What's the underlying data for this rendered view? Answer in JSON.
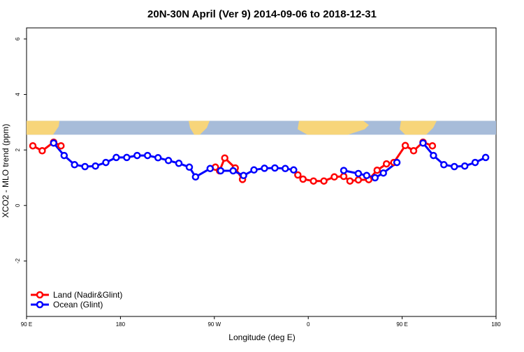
{
  "chart_data": {
    "type": "line",
    "title": "20N-30N April (Ver 9)   2014-09-06 to 2018-12-31",
    "xlabel": "Longitude (deg E)",
    "ylabel": "XCO2 - MLO trend (ppm)",
    "xlim": [
      90,
      540
    ],
    "ylim": [
      -4,
      6.4
    ],
    "x_ticks": [
      {
        "value": 90,
        "label": "90 E"
      },
      {
        "value": 180,
        "label": "180"
      },
      {
        "value": 270,
        "label": "90 W"
      },
      {
        "value": 360,
        "label": "0"
      },
      {
        "value": 450,
        "label": "90 E"
      },
      {
        "value": 540,
        "label": "180"
      }
    ],
    "y_ticks": [
      {
        "value": -2,
        "label": "-2"
      },
      {
        "value": 0,
        "label": "0"
      },
      {
        "value": 2,
        "label": "2"
      },
      {
        "value": 4,
        "label": "4"
      },
      {
        "value": 6,
        "label": "6"
      }
    ],
    "map_band": {
      "y_range": [
        2.55,
        3.05
      ],
      "ocean_color": "#a7bcd9",
      "land_color": "#f7d57a"
    },
    "series": [
      {
        "name": "Land (Nadir&Glint)",
        "color": "#ff0000",
        "segments": [
          [
            [
              96,
              2.15
            ],
            [
              105,
              1.97
            ],
            [
              116,
              2.28
            ],
            [
              123,
              2.15
            ]
          ],
          [
            [
              271,
              1.38
            ],
            [
              275,
              1.25
            ],
            [
              280,
              1.71
            ],
            [
              290,
              1.35
            ],
            [
              297,
              0.94
            ]
          ],
          [
            [
              350,
              1.1
            ],
            [
              355,
              0.95
            ],
            [
              365,
              0.88
            ],
            [
              375,
              0.88
            ],
            [
              385,
              1.03
            ],
            [
              394,
              1.05
            ],
            [
              400,
              0.88
            ],
            [
              408,
              0.92
            ],
            [
              418,
              0.93
            ],
            [
              426,
              1.27
            ],
            [
              435,
              1.5
            ],
            [
              442,
              1.55
            ],
            [
              453,
              2.16
            ],
            [
              461,
              1.97
            ],
            [
              470,
              2.28
            ],
            [
              479,
              2.15
            ]
          ]
        ]
      },
      {
        "name": "Ocean (Glint)",
        "color": "#0000ff",
        "segments": [
          [
            [
              116,
              2.25
            ],
            [
              126,
              1.8
            ],
            [
              136,
              1.47
            ],
            [
              146,
              1.4
            ],
            [
              156,
              1.42
            ],
            [
              166,
              1.55
            ],
            [
              176,
              1.73
            ],
            [
              186,
              1.73
            ],
            [
              196,
              1.8
            ],
            [
              206,
              1.8
            ],
            [
              216,
              1.72
            ],
            [
              226,
              1.62
            ],
            [
              236,
              1.52
            ],
            [
              246,
              1.38
            ],
            [
              252,
              1.03
            ],
            [
              266,
              1.33
            ],
            [
              276,
              1.25
            ],
            [
              288,
              1.25
            ],
            [
              298,
              1.08
            ],
            [
              308,
              1.28
            ],
            [
              318,
              1.34
            ],
            [
              328,
              1.35
            ],
            [
              338,
              1.33
            ],
            [
              346,
              1.28
            ]
          ],
          [
            [
              394,
              1.26
            ],
            [
              408,
              1.15
            ],
            [
              416,
              1.08
            ],
            [
              424,
              1.0
            ],
            [
              432,
              1.17
            ],
            [
              445,
              1.55
            ]
          ],
          [
            [
              470,
              2.25
            ],
            [
              480,
              1.8
            ],
            [
              490,
              1.47
            ],
            [
              500,
              1.4
            ],
            [
              510,
              1.42
            ],
            [
              520,
              1.55
            ],
            [
              530,
              1.73
            ]
          ]
        ]
      }
    ],
    "legend_position": "bottom-left"
  }
}
